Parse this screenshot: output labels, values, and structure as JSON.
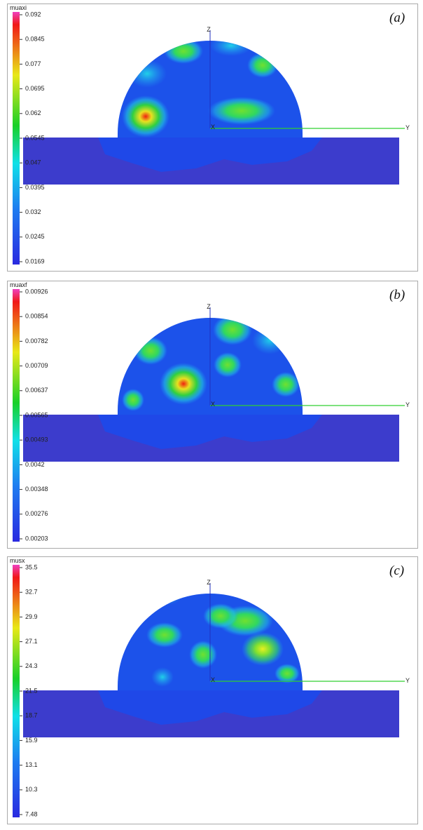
{
  "panels": [
    {
      "tag": "(a)",
      "variable": "muaxi",
      "colorbar_ticks": [
        "0.092",
        "0.0845",
        "0.077",
        "0.0695",
        "0.062",
        "0.0545",
        "0.047",
        "0.0395",
        "0.032",
        "0.0245",
        "0.0169"
      ],
      "axes": {
        "z": "Z",
        "y": "Y",
        "x": "X"
      }
    },
    {
      "tag": "(b)",
      "variable": "muaxf",
      "colorbar_ticks": [
        "0.00926",
        "0.00854",
        "0.00782",
        "0.00709",
        "0.00637",
        "0.00565",
        "0.00493",
        "0.0042",
        "0.00348",
        "0.00276",
        "0.00203"
      ],
      "axes": {
        "z": "Z",
        "y": "Y",
        "x": "X"
      }
    },
    {
      "tag": "(c)",
      "variable": "musx",
      "colorbar_ticks": [
        "35.5",
        "32.7",
        "29.9",
        "27.1",
        "24.3",
        "21.5",
        "18.7",
        "15.9",
        "13.1",
        "10.3",
        "7.48"
      ],
      "axes": {
        "z": "Z",
        "y": "Y",
        "x": "X"
      }
    }
  ]
}
